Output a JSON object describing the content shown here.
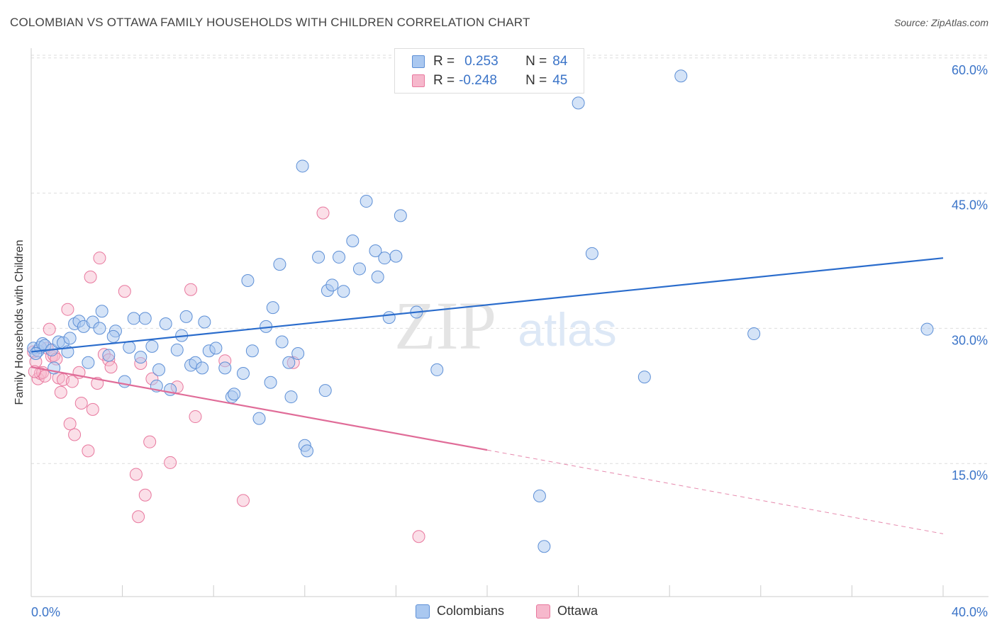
{
  "header": {
    "title": "COLOMBIAN VS OTTAWA FAMILY HOUSEHOLDS WITH CHILDREN CORRELATION CHART",
    "source": "Source: ZipAtlas.com"
  },
  "watermark": {
    "zip": "ZIP",
    "atlas": "atlas"
  },
  "legend_top": {
    "rows": [
      {
        "r_label": "R =",
        "r_value": "0.253",
        "n_label": "N =",
        "n_value": "84"
      },
      {
        "r_label": "R =",
        "r_value": "-0.248",
        "n_label": "N =",
        "n_value": "45"
      }
    ]
  },
  "legend_bottom": {
    "items": [
      "Colombians",
      "Ottawa"
    ]
  },
  "colors": {
    "blue_fill": "#aac8f0",
    "blue_stroke": "#5d8fd6",
    "blue_line": "#2a6ccc",
    "pink_fill": "#f6b8cc",
    "pink_stroke": "#e8789e",
    "pink_line": "#e06c98",
    "axis_label": "#3b74c8",
    "grid": "#dddddd"
  },
  "chart_data": {
    "type": "scatter",
    "title": "COLOMBIAN VS OTTAWA FAMILY HOUSEHOLDS WITH CHILDREN CORRELATION CHART",
    "xlabel": "",
    "ylabel": "Family Households with Children",
    "xlim": [
      0,
      40
    ],
    "ylim": [
      0,
      60
    ],
    "x_tick_labels": [
      "0.0%",
      "40.0%"
    ],
    "y_tick_labels": [
      "15.0%",
      "30.0%",
      "45.0%",
      "60.0%"
    ],
    "y_tick_values": [
      15,
      30,
      45,
      60
    ],
    "grid": true,
    "legend_position": "top-center",
    "series": [
      {
        "name": "Colombians",
        "r": 0.253,
        "n": 84,
        "trend": {
          "x": [
            0,
            40
          ],
          "y": [
            27.4,
            37.8
          ]
        },
        "points": [
          [
            0.1,
            27.8
          ],
          [
            0.3,
            27.5
          ],
          [
            0.4,
            27.9
          ],
          [
            0.5,
            28.3
          ],
          [
            0.6,
            28.1
          ],
          [
            0.9,
            27.6
          ],
          [
            1.0,
            25.6
          ],
          [
            1.2,
            28.5
          ],
          [
            1.4,
            28.4
          ],
          [
            1.6,
            27.4
          ],
          [
            1.9,
            30.5
          ],
          [
            2.1,
            30.8
          ],
          [
            2.3,
            30.2
          ],
          [
            2.5,
            26.2
          ],
          [
            2.7,
            30.7
          ],
          [
            3.0,
            30.0
          ],
          [
            3.1,
            31.9
          ],
          [
            3.4,
            27.0
          ],
          [
            3.7,
            29.7
          ],
          [
            4.1,
            24.1
          ],
          [
            4.3,
            27.9
          ],
          [
            4.5,
            31.1
          ],
          [
            4.8,
            26.8
          ],
          [
            5.0,
            31.1
          ],
          [
            5.3,
            28.0
          ],
          [
            5.5,
            23.6
          ],
          [
            5.6,
            25.4
          ],
          [
            5.9,
            30.5
          ],
          [
            6.1,
            23.2
          ],
          [
            6.4,
            27.6
          ],
          [
            6.6,
            29.2
          ],
          [
            6.8,
            31.3
          ],
          [
            7.0,
            25.9
          ],
          [
            7.2,
            26.2
          ],
          [
            7.5,
            25.6
          ],
          [
            7.6,
            30.7
          ],
          [
            7.8,
            27.5
          ],
          [
            8.1,
            27.8
          ],
          [
            8.5,
            25.6
          ],
          [
            8.8,
            22.4
          ],
          [
            8.9,
            22.7
          ],
          [
            9.3,
            25.0
          ],
          [
            9.5,
            35.3
          ],
          [
            9.7,
            27.5
          ],
          [
            10.0,
            20.0
          ],
          [
            10.3,
            30.2
          ],
          [
            10.5,
            24.0
          ],
          [
            10.6,
            32.3
          ],
          [
            10.9,
            37.1
          ],
          [
            11.0,
            28.5
          ],
          [
            11.3,
            26.2
          ],
          [
            11.4,
            22.4
          ],
          [
            11.7,
            27.2
          ],
          [
            11.9,
            48.0
          ],
          [
            12.0,
            17.0
          ],
          [
            12.1,
            16.4
          ],
          [
            12.6,
            37.9
          ],
          [
            12.9,
            23.1
          ],
          [
            13.0,
            34.2
          ],
          [
            13.2,
            34.8
          ],
          [
            13.5,
            37.9
          ],
          [
            13.7,
            34.1
          ],
          [
            14.1,
            39.7
          ],
          [
            14.4,
            36.6
          ],
          [
            14.7,
            44.1
          ],
          [
            15.1,
            38.6
          ],
          [
            15.2,
            35.7
          ],
          [
            15.5,
            37.8
          ],
          [
            15.7,
            31.2
          ],
          [
            16.0,
            38.0
          ],
          [
            16.2,
            42.5
          ],
          [
            16.9,
            31.8
          ],
          [
            17.8,
            25.4
          ],
          [
            22.3,
            11.4
          ],
          [
            22.5,
            5.8
          ],
          [
            24.0,
            55.0
          ],
          [
            24.6,
            38.3
          ],
          [
            26.9,
            24.6
          ],
          [
            28.5,
            58.0
          ],
          [
            31.7,
            29.4
          ],
          [
            39.3,
            29.9
          ],
          [
            0.2,
            27.2
          ],
          [
            1.7,
            28.9
          ],
          [
            3.6,
            29.1
          ]
        ]
      },
      {
        "name": "Ottawa",
        "r": -0.248,
        "n": 45,
        "trend": {
          "x": [
            0,
            20
          ],
          "y": [
            25.7,
            16.5
          ]
        },
        "trend_dashed": {
          "x": [
            20,
            40
          ],
          "y": [
            16.5,
            7.2
          ]
        },
        "points": [
          [
            0.1,
            27.4
          ],
          [
            0.2,
            26.3
          ],
          [
            0.3,
            24.4
          ],
          [
            0.4,
            25.0
          ],
          [
            0.5,
            25.1
          ],
          [
            0.6,
            24.7
          ],
          [
            0.7,
            27.8
          ],
          [
            0.8,
            29.9
          ],
          [
            0.9,
            26.9
          ],
          [
            1.0,
            27.0
          ],
          [
            1.1,
            26.6
          ],
          [
            1.2,
            24.5
          ],
          [
            1.3,
            22.9
          ],
          [
            1.4,
            24.3
          ],
          [
            1.6,
            32.1
          ],
          [
            1.7,
            19.4
          ],
          [
            1.8,
            24.1
          ],
          [
            1.9,
            18.2
          ],
          [
            2.1,
            25.1
          ],
          [
            2.2,
            21.7
          ],
          [
            2.5,
            16.4
          ],
          [
            2.6,
            35.7
          ],
          [
            2.7,
            21.0
          ],
          [
            2.9,
            23.9
          ],
          [
            3.0,
            37.8
          ],
          [
            3.2,
            27.1
          ],
          [
            3.4,
            26.5
          ],
          [
            3.5,
            25.7
          ],
          [
            4.1,
            34.1
          ],
          [
            4.6,
            13.8
          ],
          [
            4.7,
            9.1
          ],
          [
            4.8,
            26.1
          ],
          [
            5.0,
            11.5
          ],
          [
            5.2,
            17.4
          ],
          [
            5.3,
            24.4
          ],
          [
            6.1,
            15.1
          ],
          [
            6.4,
            23.5
          ],
          [
            7.0,
            34.3
          ],
          [
            7.2,
            20.2
          ],
          [
            8.5,
            26.4
          ],
          [
            9.3,
            10.9
          ],
          [
            11.5,
            26.2
          ],
          [
            12.8,
            42.8
          ],
          [
            17.0,
            6.9
          ],
          [
            0.15,
            25.2
          ]
        ]
      }
    ]
  }
}
